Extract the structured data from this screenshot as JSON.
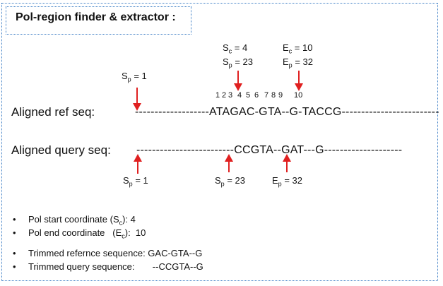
{
  "title": "Pol-region finder & extractor :",
  "labels": {
    "ref": "Aligned ref seq:",
    "query": "Aligned  query seq:"
  },
  "sequences": {
    "ref": "-------------------ATAGAC-GTA--G-TACCG-------------------------",
    "query": "-------------------------CCGTA--GAT---G--------------------"
  },
  "position_indices": [
    "1",
    "2",
    "3",
    "4",
    "5",
    "6",
    "7",
    "8",
    "9",
    "10"
  ],
  "annotations": {
    "ref_sp": {
      "letter": "S",
      "sub": "p",
      "value": "= 1"
    },
    "ref_sc": {
      "letter": "S",
      "sub": "c",
      "value": "= 4"
    },
    "ref_sp23": {
      "letter": "S",
      "sub": "p",
      "value": "= 23"
    },
    "ref_ec": {
      "letter": "E",
      "sub": "c",
      "value": "= 10"
    },
    "ref_ep": {
      "letter": "E",
      "sub": "p",
      "value": "= 32"
    },
    "q_sp1": {
      "letter": "S",
      "sub": "p",
      "value": "= 1"
    },
    "q_sp23": {
      "letter": "S",
      "sub": "p",
      "value": "= 23"
    },
    "q_ep32": {
      "letter": "E",
      "sub": "p",
      "value": "= 32"
    }
  },
  "bullets": [
    {
      "pre": "Pol start coordinate (S",
      "sub": "c",
      "post": "):  4"
    },
    {
      "pre": "Pol end coordinate   (E",
      "sub": "c",
      "post": "):  10"
    },
    {
      "pre": "Trimmed refernce sequence: GAC-GTA--G",
      "sub": "",
      "post": ""
    },
    {
      "pre": "Trimmed query sequence:       --CCGTA--G",
      "sub": "",
      "post": ""
    }
  ],
  "colors": {
    "frame": "#3a7cc4",
    "arrow": "#e02020"
  }
}
